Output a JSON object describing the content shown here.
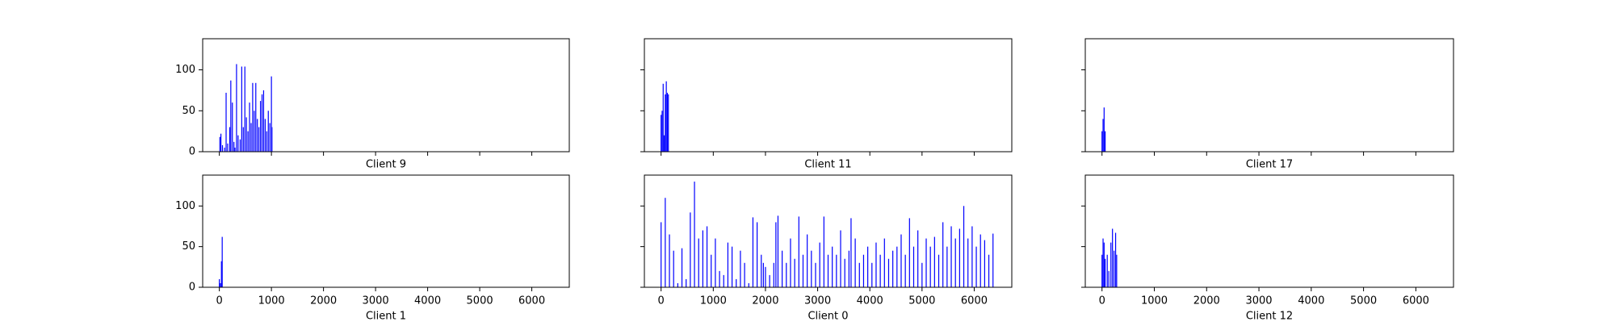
{
  "chart_data": [
    {
      "type": "bar",
      "xlabel": "Client 9",
      "color": "#0000ff",
      "xlim": [
        -320,
        6720
      ],
      "ylim": [
        0,
        138
      ],
      "xticks": [
        0,
        1000,
        2000,
        3000,
        4000,
        5000,
        6000
      ],
      "yticks": [
        0,
        50,
        100
      ],
      "x": [
        10,
        30,
        60,
        100,
        130,
        160,
        200,
        220,
        250,
        280,
        300,
        330,
        360,
        400,
        430,
        460,
        490,
        520,
        550,
        580,
        610,
        640,
        670,
        700,
        730,
        760,
        790,
        820,
        850,
        880,
        910,
        940,
        970,
        1000,
        1010
      ],
      "values": [
        18,
        22,
        8,
        5,
        72,
        10,
        30,
        87,
        60,
        12,
        5,
        107,
        20,
        15,
        104,
        30,
        104,
        42,
        25,
        60,
        35,
        84,
        50,
        84,
        40,
        30,
        62,
        70,
        75,
        40,
        25,
        50,
        35,
        92,
        30
      ]
    },
    {
      "type": "bar",
      "xlabel": "Client 11",
      "color": "#0000ff",
      "xlim": [
        -320,
        6720
      ],
      "ylim": [
        0,
        138
      ],
      "xticks": [
        0,
        1000,
        2000,
        3000,
        4000,
        5000,
        6000
      ],
      "yticks": [
        0,
        50,
        100
      ],
      "x": [
        0,
        20,
        40,
        60,
        80,
        100,
        120,
        140
      ],
      "values": [
        45,
        50,
        83,
        20,
        70,
        86,
        72,
        70
      ]
    },
    {
      "type": "bar",
      "xlabel": "Client 17",
      "color": "#0000ff",
      "xlim": [
        -320,
        6720
      ],
      "ylim": [
        0,
        138
      ],
      "xticks": [
        0,
        1000,
        2000,
        3000,
        4000,
        5000,
        6000
      ],
      "yticks": [
        0,
        50,
        100
      ],
      "x": [
        0,
        20,
        40,
        60
      ],
      "values": [
        25,
        40,
        54,
        25
      ]
    },
    {
      "type": "bar",
      "xlabel": "Client 1",
      "color": "#0000ff",
      "xlim": [
        -320,
        6720
      ],
      "ylim": [
        0,
        138
      ],
      "xticks": [
        0,
        1000,
        2000,
        3000,
        4000,
        5000,
        6000
      ],
      "yticks": [
        0,
        50,
        100
      ],
      "x": [
        0,
        20,
        40,
        55
      ],
      "values": [
        10,
        5,
        32,
        62
      ]
    },
    {
      "type": "bar",
      "xlabel": "Client 0",
      "color": "#0000ff",
      "xlim": [
        -320,
        6720
      ],
      "ylim": [
        0,
        138
      ],
      "xticks": [
        0,
        1000,
        2000,
        3000,
        4000,
        5000,
        6000
      ],
      "yticks": [
        0,
        50,
        100
      ],
      "x": [
        0,
        80,
        160,
        240,
        320,
        400,
        480,
        560,
        640,
        720,
        800,
        880,
        960,
        1040,
        1120,
        1200,
        1280,
        1360,
        1440,
        1520,
        1600,
        1680,
        1760,
        1840,
        1920,
        1960,
        2000,
        2080,
        2160,
        2200,
        2240,
        2320,
        2400,
        2480,
        2560,
        2640,
        2720,
        2800,
        2880,
        2960,
        3040,
        3120,
        3200,
        3280,
        3360,
        3440,
        3520,
        3600,
        3640,
        3720,
        3800,
        3880,
        3960,
        4040,
        4120,
        4200,
        4280,
        4360,
        4440,
        4520,
        4600,
        4680,
        4760,
        4840,
        4920,
        5000,
        5080,
        5160,
        5240,
        5320,
        5400,
        5480,
        5560,
        5640,
        5720,
        5800,
        5880,
        5960,
        6040,
        6120,
        6200,
        6280,
        6360
      ],
      "values": [
        80,
        110,
        65,
        45,
        5,
        48,
        10,
        92,
        130,
        60,
        70,
        75,
        40,
        60,
        20,
        15,
        55,
        50,
        10,
        45,
        30,
        5,
        86,
        80,
        40,
        30,
        25,
        15,
        30,
        80,
        88,
        45,
        30,
        60,
        35,
        87,
        40,
        65,
        45,
        30,
        55,
        87,
        40,
        50,
        40,
        70,
        35,
        45,
        85,
        60,
        30,
        40,
        50,
        30,
        55,
        40,
        60,
        35,
        45,
        50,
        65,
        40,
        85,
        50,
        70,
        30,
        60,
        50,
        62,
        40,
        80,
        50,
        75,
        60,
        72,
        100,
        60,
        75,
        50,
        65,
        58,
        40,
        66
      ]
    },
    {
      "type": "bar",
      "xlabel": "Client 12",
      "color": "#0000ff",
      "xlim": [
        -320,
        6720
      ],
      "ylim": [
        0,
        138
      ],
      "xticks": [
        0,
        1000,
        2000,
        3000,
        4000,
        5000,
        6000
      ],
      "yticks": [
        0,
        50,
        100
      ],
      "x": [
        0,
        20,
        40,
        60,
        100,
        130,
        170,
        200,
        230,
        260,
        280
      ],
      "values": [
        40,
        60,
        55,
        35,
        40,
        20,
        55,
        72,
        45,
        67,
        40
      ]
    }
  ]
}
